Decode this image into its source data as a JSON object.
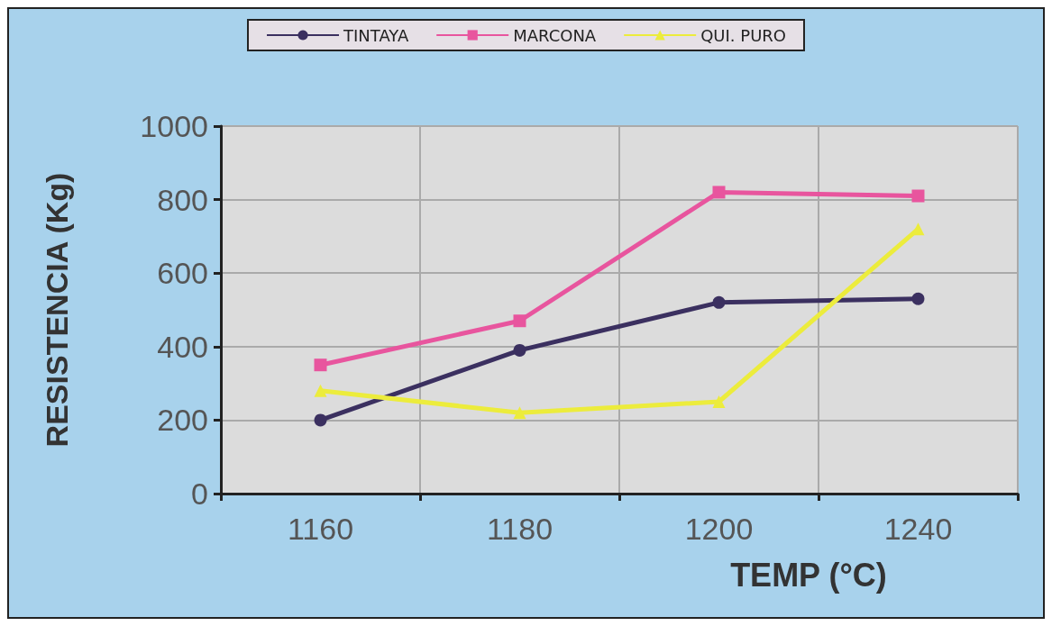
{
  "chart_data": {
    "type": "line",
    "xlabel": "TEMP (°C)",
    "ylabel": "RESISTENCIA (Kg)",
    "categories": [
      "1160",
      "1180",
      "1200",
      "1240"
    ],
    "series": [
      {
        "name": "TINTAYA",
        "color": "#3b3060",
        "marker": "circle",
        "values": [
          200,
          390,
          520,
          530
        ]
      },
      {
        "name": "MARCONA",
        "color": "#e8559e",
        "marker": "square",
        "values": [
          350,
          470,
          820,
          810
        ]
      },
      {
        "name": "QUI. PURO",
        "color": "#ecec3c",
        "marker": "triangle",
        "values": [
          280,
          220,
          250,
          720
        ]
      }
    ],
    "ylim": [
      0,
      1000
    ],
    "yticks": [
      0,
      200,
      400,
      600,
      800,
      1000
    ],
    "grid": true,
    "legend": "top"
  }
}
